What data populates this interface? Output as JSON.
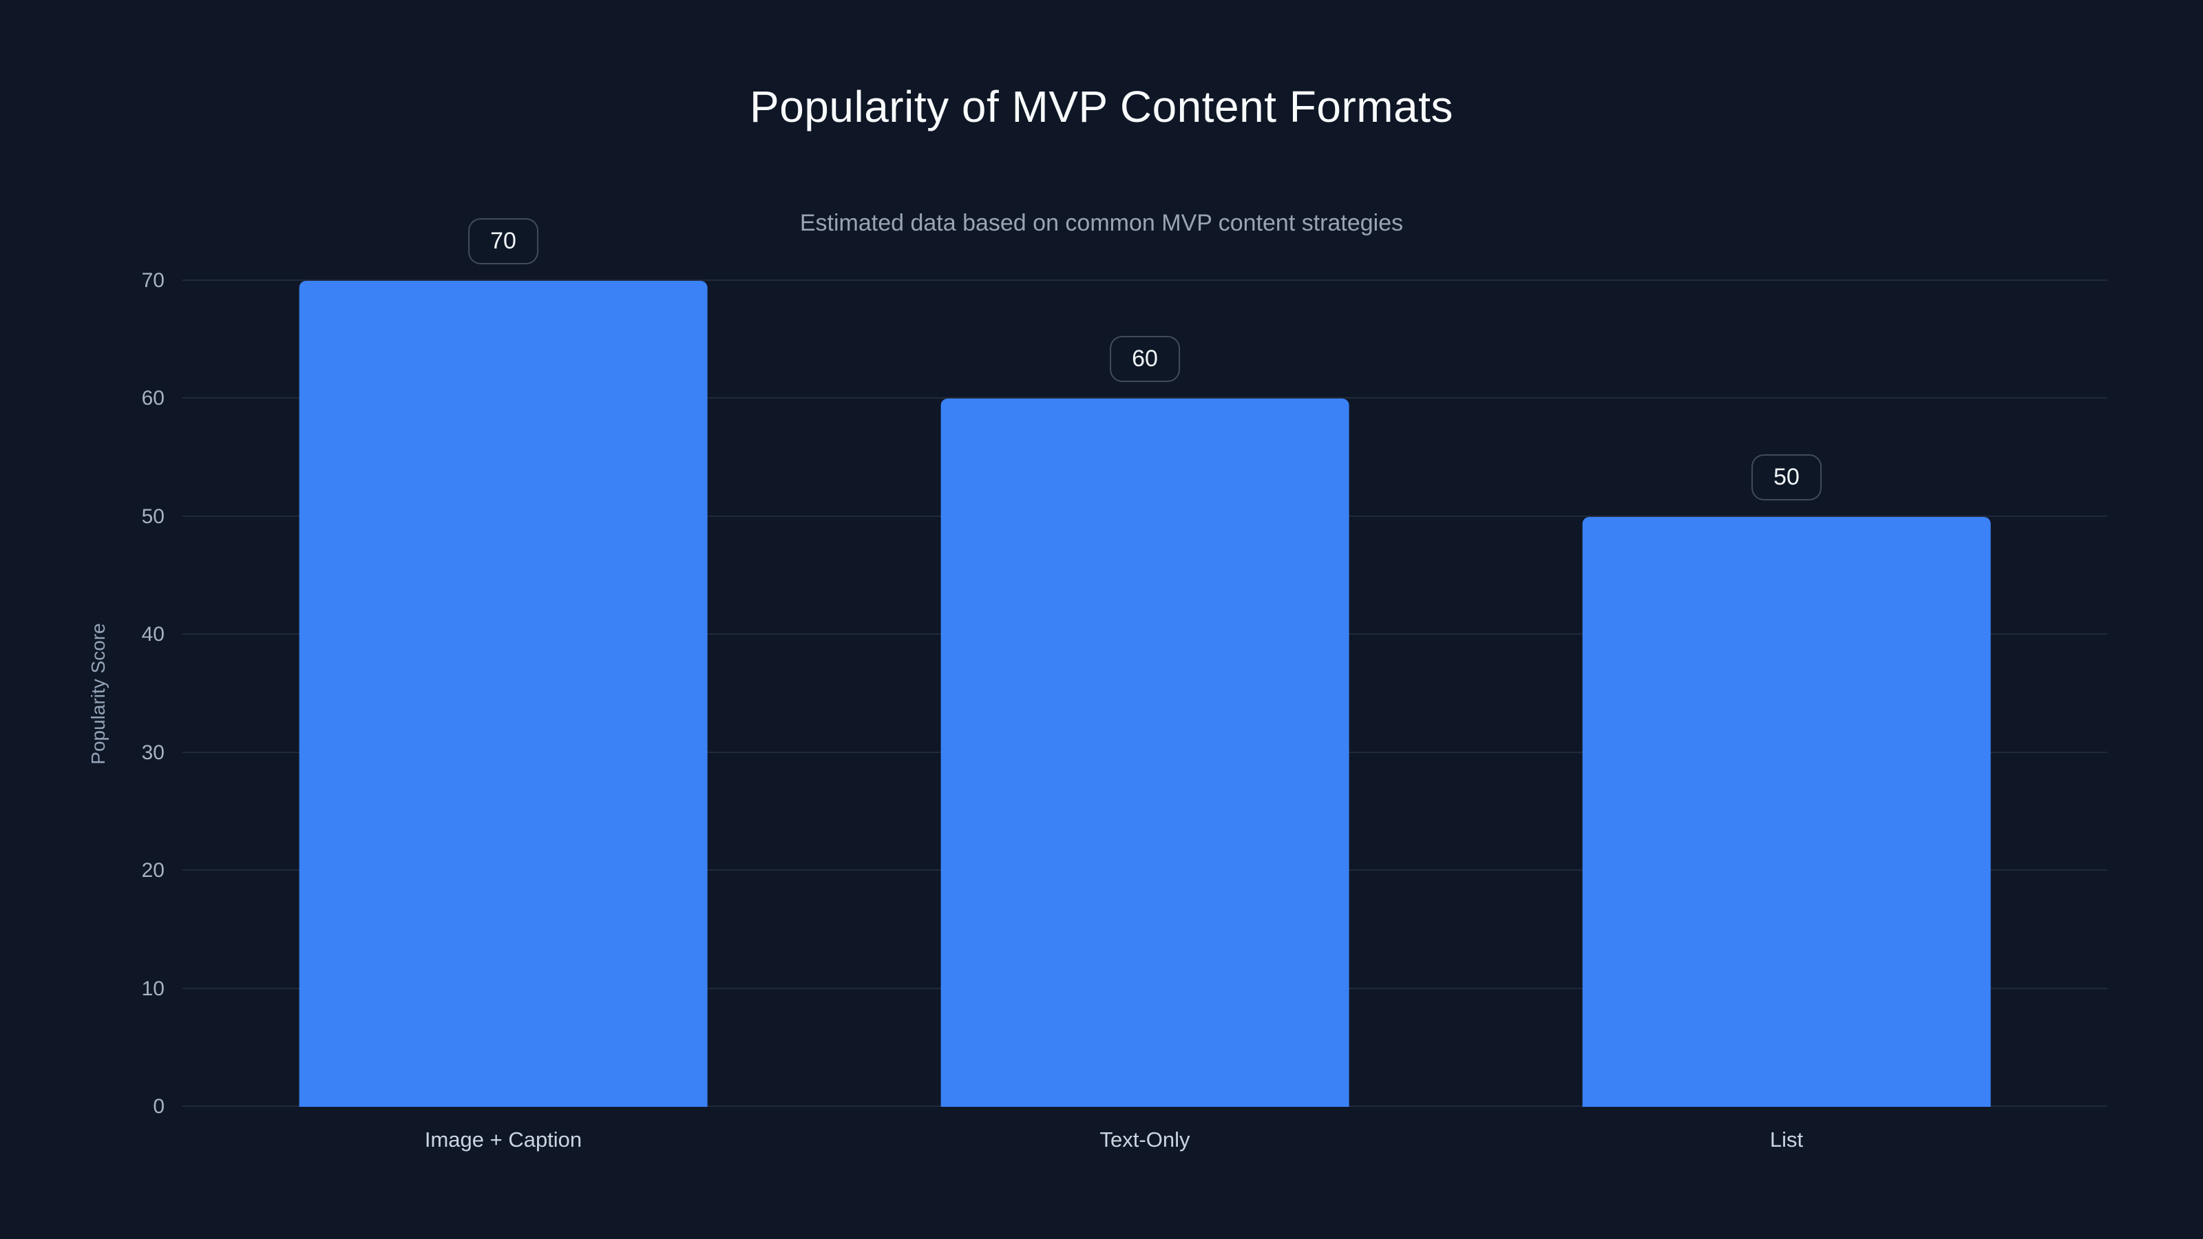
{
  "chart_data": {
    "type": "bar",
    "title": "Popularity of MVP Content Formats",
    "subtitle": "Estimated data based on common MVP content strategies",
    "ylabel": "Popularity Score",
    "xlabel": "",
    "categories": [
      "Image + Caption",
      "Text-Only",
      "List"
    ],
    "values": [
      70,
      60,
      50
    ],
    "value_labels": [
      "70",
      "60",
      "50"
    ],
    "ylim": [
      0,
      70
    ],
    "yticks": [
      0,
      10,
      20,
      30,
      40,
      50,
      60,
      70
    ],
    "grid": true,
    "legend": "none",
    "bar_color": "#3b82f6",
    "background_color": "#0f1726"
  }
}
